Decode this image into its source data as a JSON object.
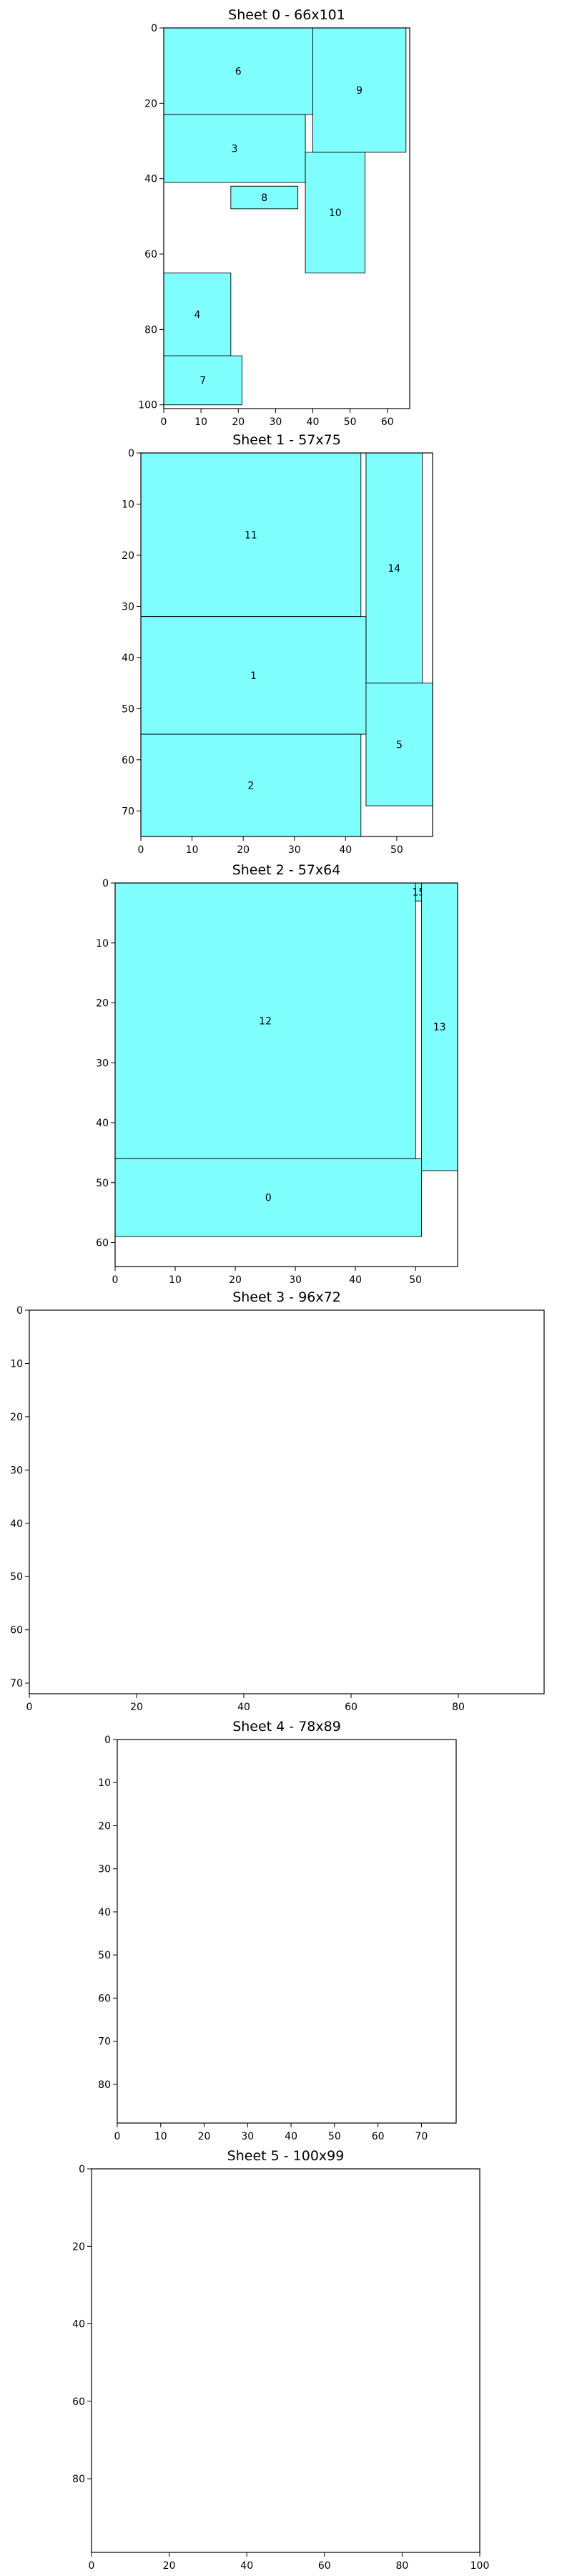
{
  "chart_data": [
    {
      "type": "rectangles",
      "title": "Sheet 0 - 66x101",
      "width": 66,
      "height": 101,
      "xticks": [
        0,
        10,
        20,
        30,
        40,
        50,
        60
      ],
      "yticks": [
        0,
        20,
        40,
        60,
        80,
        100
      ],
      "rects": [
        {
          "id": "6",
          "x": 0,
          "y": 0,
          "w": 40,
          "h": 23
        },
        {
          "id": "9",
          "x": 40,
          "y": 0,
          "w": 25,
          "h": 33
        },
        {
          "id": "3",
          "x": 0,
          "y": 23,
          "w": 38,
          "h": 18
        },
        {
          "id": "8",
          "x": 18,
          "y": 42,
          "w": 18,
          "h": 6
        },
        {
          "id": "10",
          "x": 38,
          "y": 33,
          "w": 16,
          "h": 32
        },
        {
          "id": "4",
          "x": 0,
          "y": 65,
          "w": 18,
          "h": 22
        },
        {
          "id": "7",
          "x": 0,
          "y": 87,
          "w": 21,
          "h": 13
        }
      ]
    },
    {
      "type": "rectangles",
      "title": "Sheet 1 - 57x75",
      "width": 57,
      "height": 75,
      "xticks": [
        0,
        10,
        20,
        30,
        40,
        50
      ],
      "yticks": [
        0,
        10,
        20,
        30,
        40,
        50,
        60,
        70
      ],
      "rects": [
        {
          "id": "11",
          "x": 0,
          "y": 0,
          "w": 43,
          "h": 32
        },
        {
          "id": "14",
          "x": 44,
          "y": 0,
          "w": 11,
          "h": 45
        },
        {
          "id": "1",
          "x": 0,
          "y": 32,
          "w": 44,
          "h": 23
        },
        {
          "id": "5",
          "x": 44,
          "y": 45,
          "w": 13,
          "h": 24
        },
        {
          "id": "2",
          "x": 0,
          "y": 55,
          "w": 43,
          "h": 20
        }
      ]
    },
    {
      "type": "rectangles",
      "title": "Sheet 2 - 57x64",
      "width": 57,
      "height": 64,
      "xticks": [
        0,
        10,
        20,
        30,
        40,
        50
      ],
      "yticks": [
        0,
        10,
        20,
        30,
        40,
        50,
        60
      ],
      "rects": [
        {
          "id": "12",
          "x": 0,
          "y": 0,
          "w": 50,
          "h": 46
        },
        {
          "id": "15",
          "x": 50,
          "y": 0,
          "w": 1,
          "h": 3
        },
        {
          "id": "13",
          "x": 51,
          "y": 0,
          "w": 6,
          "h": 48
        },
        {
          "id": "0",
          "x": 0,
          "y": 46,
          "w": 51,
          "h": 13
        }
      ]
    },
    {
      "type": "rectangles",
      "title": "Sheet 3 - 96x72",
      "width": 96,
      "height": 72,
      "xticks": [
        0,
        20,
        40,
        60,
        80
      ],
      "yticks": [
        0,
        10,
        20,
        30,
        40,
        50,
        60,
        70
      ],
      "rects": []
    },
    {
      "type": "rectangles",
      "title": "Sheet 4 - 78x89",
      "width": 78,
      "height": 89,
      "xticks": [
        0,
        10,
        20,
        30,
        40,
        50,
        60,
        70
      ],
      "yticks": [
        0,
        10,
        20,
        30,
        40,
        50,
        60,
        70,
        80
      ],
      "rects": []
    },
    {
      "type": "rectangles",
      "title": "Sheet 5 - 100x99",
      "width": 100,
      "height": 99,
      "xticks": [
        0,
        20,
        40,
        60,
        80,
        100
      ],
      "yticks": [
        0,
        20,
        40,
        60,
        80
      ],
      "rects": []
    }
  ],
  "colors": {
    "fill": "#80ffff",
    "edge": "#000000",
    "background": "#ffffff"
  }
}
